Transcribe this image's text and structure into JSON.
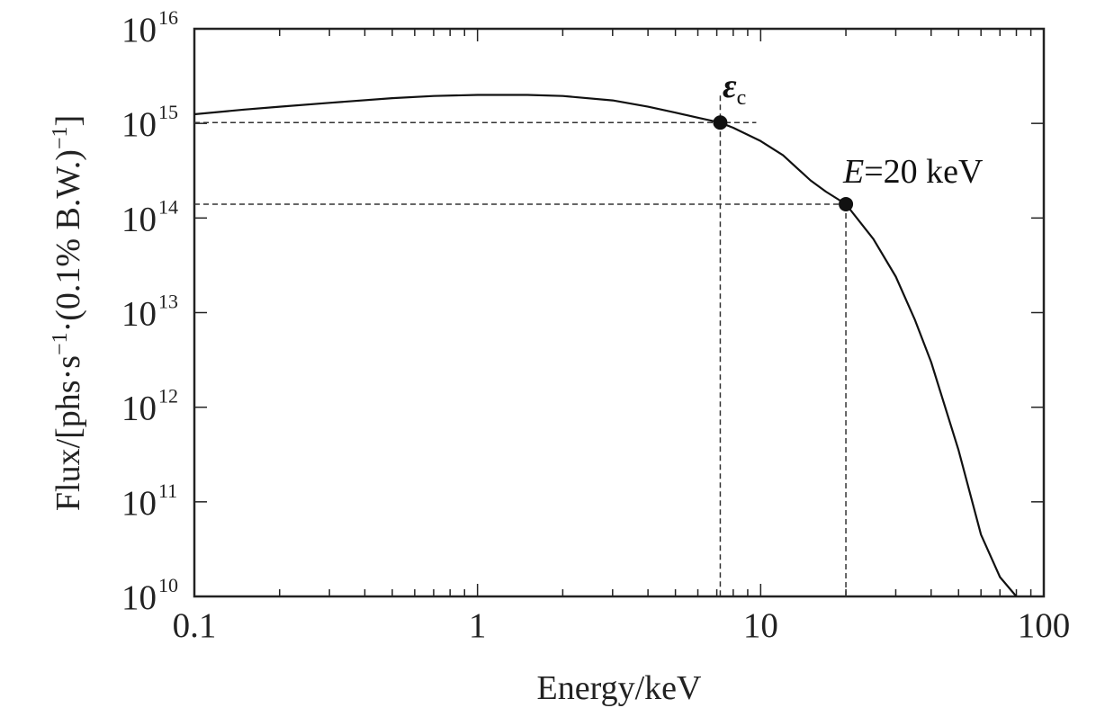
{
  "chart_data": {
    "type": "line",
    "title": "",
    "xlabel": "Energy/keV",
    "ylabel": {
      "pre": "Flux/[phs·s",
      "sup1": "−1",
      "mid": "·(0.1% B.W.)",
      "sup2": "−1",
      "post": "]"
    },
    "x_scale": "log",
    "y_scale": "log",
    "xlim": [
      0.1,
      100
    ],
    "ylim": [
      10000000000.0,
      1e+16
    ],
    "x_ticks": [
      {
        "value": 0.1,
        "label": "0.1"
      },
      {
        "value": 1,
        "label": "1"
      },
      {
        "value": 10,
        "label": "10"
      },
      {
        "value": 100,
        "label": "100"
      }
    ],
    "y_ticks": [
      {
        "value": 10000000000.0,
        "base": "10",
        "exp": "10"
      },
      {
        "value": 100000000000.0,
        "base": "10",
        "exp": "11"
      },
      {
        "value": 1000000000000.0,
        "base": "10",
        "exp": "12"
      },
      {
        "value": 10000000000000.0,
        "base": "10",
        "exp": "13"
      },
      {
        "value": 100000000000000.0,
        "base": "10",
        "exp": "14"
      },
      {
        "value": 1000000000000000.0,
        "base": "10",
        "exp": "15"
      },
      {
        "value": 1e+16,
        "base": "10",
        "exp": "16"
      }
    ],
    "series": [
      {
        "x": [
          0.1,
          0.15,
          0.2,
          0.3,
          0.5,
          0.7,
          1.0,
          1.5,
          2.0,
          3.0,
          4.0,
          5.0,
          6.0,
          7.2,
          8.0,
          10.0,
          12.0,
          15.0,
          17.0,
          20.0,
          25.0,
          30.0,
          35.0,
          40.0,
          50.0,
          60.0,
          70.0,
          80.0
        ],
        "y": [
          1250000000000000.0,
          1400000000000000.0,
          1500000000000000.0,
          1650000000000000.0,
          1850000000000000.0,
          1950000000000000.0,
          2000000000000000.0,
          2000000000000000.0,
          1950000000000000.0,
          1750000000000000.0,
          1500000000000000.0,
          1300000000000000.0,
          1150000000000000.0,
          1020000000000000.0,
          900000000000000.0,
          650000000000000.0,
          460000000000000.0,
          250000000000000.0,
          190000000000000.0,
          140000000000000.0,
          60000000000000.0,
          24000000000000.0,
          8500000000000.0,
          3000000000000.0,
          350000000000.0,
          45000000000.0,
          16000000000.0,
          10000000000.0
        ],
        "color": "#111111"
      }
    ],
    "points": [
      {
        "x": 7.2,
        "y": 1020000000000000.0,
        "label_symbol": "ε",
        "label_sub": "c"
      },
      {
        "x": 20,
        "y": 140000000000000.0,
        "label_var": "E",
        "label_rest": "=20 keV"
      }
    ],
    "grid": false,
    "legend": "none"
  }
}
